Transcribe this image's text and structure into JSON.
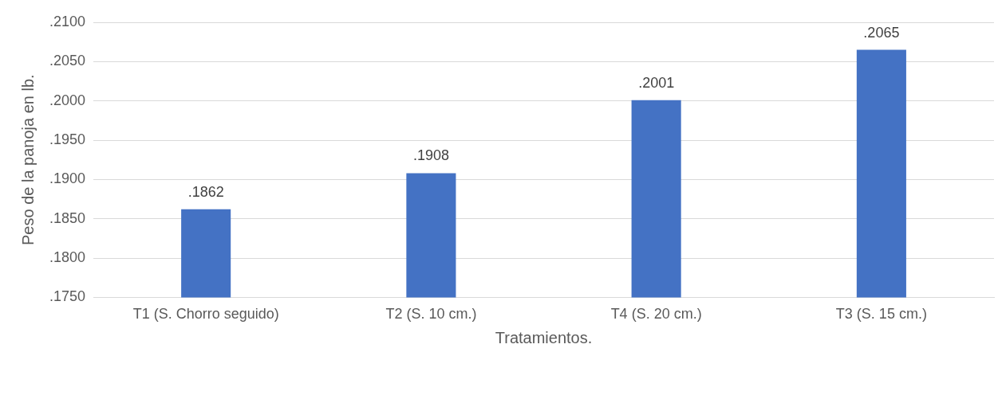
{
  "chart_data": {
    "type": "bar",
    "xlabel": "Tratamientos.",
    "ylabel": "Peso de la panoja en lb.",
    "categories": [
      "T1 (S. Chorro seguido)",
      "T2 (S. 10 cm.)",
      "T4 (S. 20 cm.)",
      "T3 (S. 15 cm.)"
    ],
    "values": [
      0.1862,
      0.1908,
      0.2001,
      0.2065
    ],
    "value_labels": [
      ".1862",
      ".1908",
      ".2001",
      ".2065"
    ],
    "color": "#4472c4",
    "ylim": [
      0.175,
      0.21
    ],
    "yticks": [
      {
        "value": 0.175,
        "label": ".1750"
      },
      {
        "value": 0.18,
        "label": ".1800"
      },
      {
        "value": 0.185,
        "label": ".1850"
      },
      {
        "value": 0.19,
        "label": ".1900"
      },
      {
        "value": 0.195,
        "label": ".1950"
      },
      {
        "value": 0.2,
        "label": ".2000"
      },
      {
        "value": 0.205,
        "label": ".2050"
      },
      {
        "value": 0.21,
        "label": ".2100"
      }
    ],
    "grid": "y",
    "legend": false
  }
}
